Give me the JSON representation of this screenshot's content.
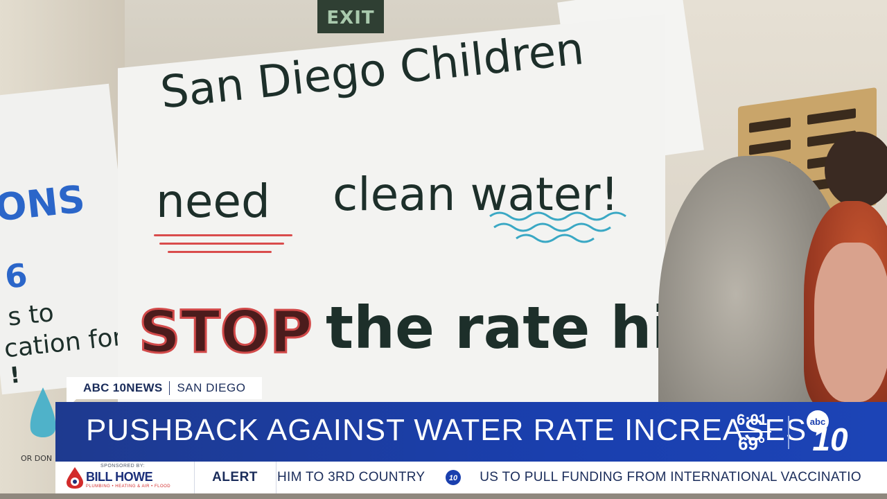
{
  "scene": {
    "exit_sign": "EXIT",
    "poster": {
      "line1": "San Diego Children",
      "line2a": "need",
      "line2b": "clean water!",
      "line3a": "STOP",
      "line3b": "the rate hikes"
    },
    "left_sign_fragments": [
      "ONS",
      "6",
      "s to",
      "cation for",
      "!"
    ],
    "left_sign_bottom": "OR DON"
  },
  "lower_third": {
    "station": "ABC 10NEWS",
    "location": "SAN DIEGO",
    "headline": "PUSHBACK AGAINST WATER RATE INCREASES",
    "time": "6:01",
    "temperature": "69°",
    "logo": "abc 10"
  },
  "ticker": {
    "sponsored_by": "SPONSORED BY:",
    "sponsor_name": "BILL HOWE",
    "sponsor_tagline": "PLUMBING • HEATING & AIR • FLOOD",
    "alert_label": "ALERT",
    "items": [
      "HIM TO 3RD COUNTRY",
      "US TO PULL FUNDING FROM INTERNATIONAL VACCINATIO"
    ]
  },
  "colors": {
    "headline_bar": "#1a3fae",
    "text_dark": "#1a2c5a",
    "sign_red": "#d94c4c",
    "sign_teal": "#3aa8c4"
  }
}
